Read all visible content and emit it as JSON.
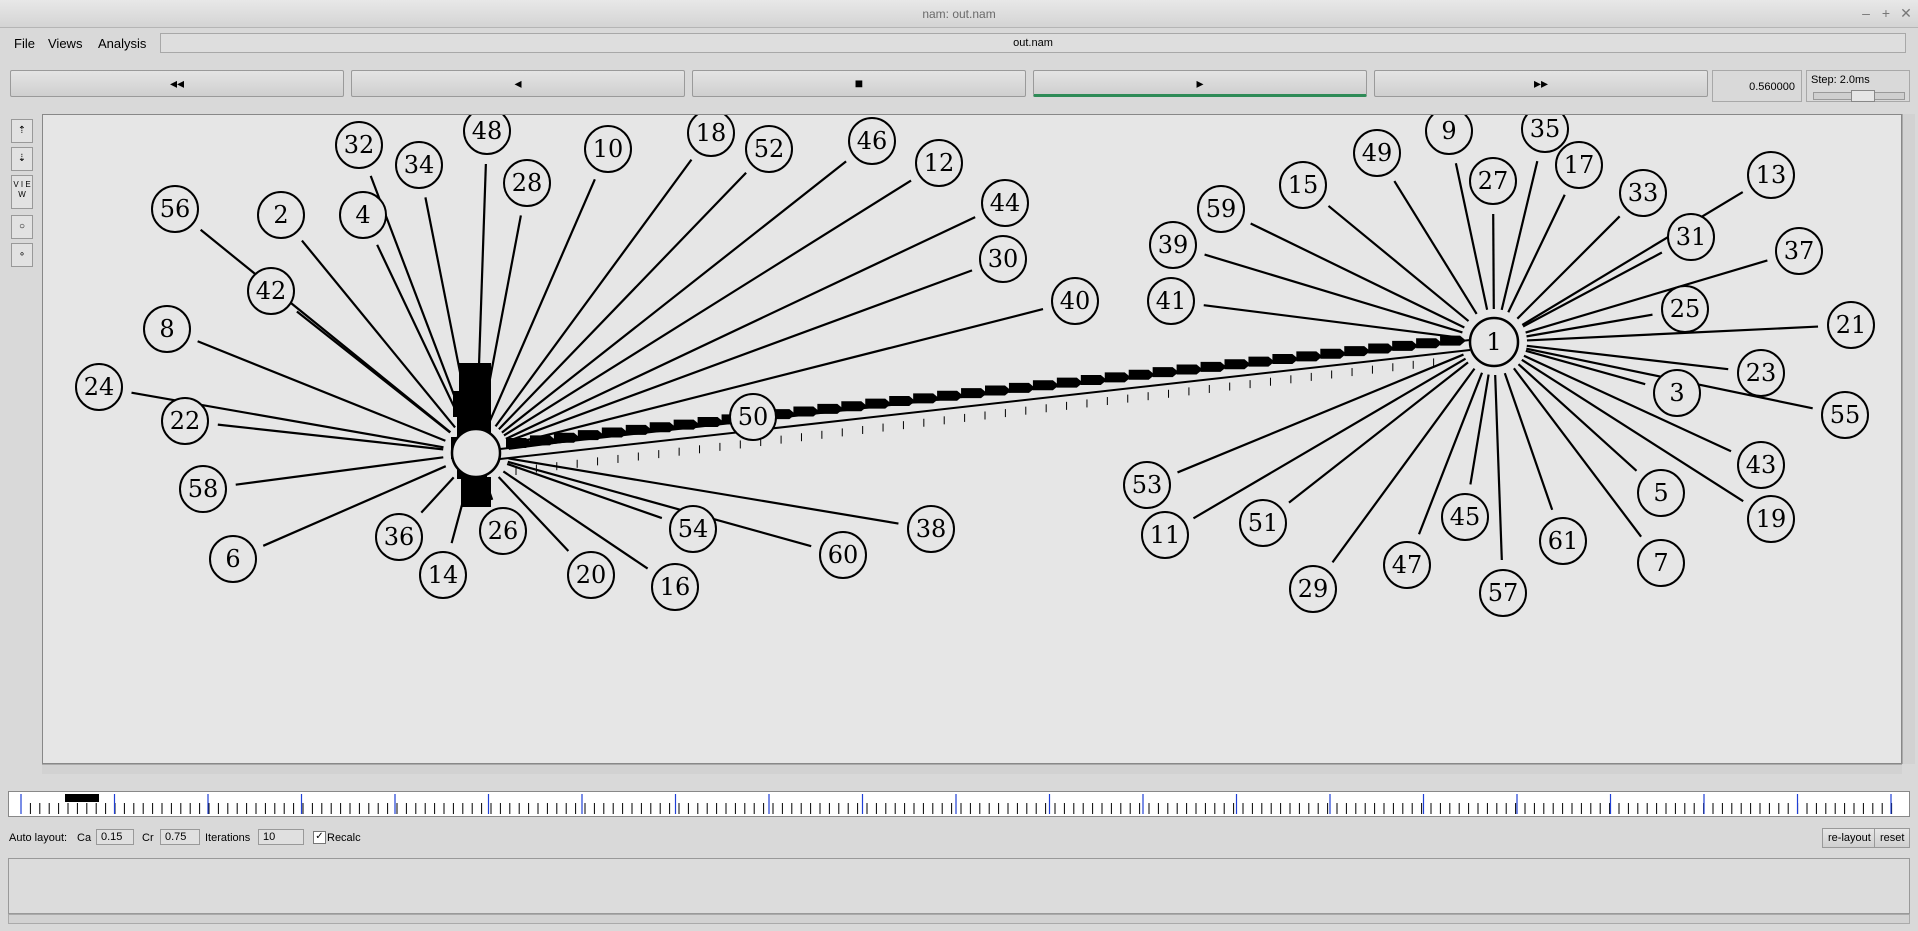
{
  "window": {
    "title": "nam: out.nam"
  },
  "menu": {
    "file": "File",
    "views": "Views",
    "analysis": "Analysis"
  },
  "file_name": "out.nam",
  "controls": {
    "rewind": "◂◂",
    "back": "◂",
    "stop": "■",
    "play": "▸",
    "forward": "▸▸",
    "time": "0.560000",
    "step": "Step: 2.0ms"
  },
  "tools": {
    "view_label": "V I E W"
  },
  "topology": {
    "hub_left": {
      "id": "0",
      "label": ""
    },
    "hub_right": {
      "id": "1",
      "label": "1"
    },
    "left_nodes": [
      {
        "label": "32"
      },
      {
        "label": "34"
      },
      {
        "label": "48"
      },
      {
        "label": "28"
      },
      {
        "label": "10"
      },
      {
        "label": "18"
      },
      {
        "label": "52"
      },
      {
        "label": "46"
      },
      {
        "label": "12"
      },
      {
        "label": "44"
      },
      {
        "label": "30"
      },
      {
        "label": "40"
      },
      {
        "label": "56"
      },
      {
        "label": "2"
      },
      {
        "label": "4"
      },
      {
        "label": "42"
      },
      {
        "label": "8"
      },
      {
        "label": "24"
      },
      {
        "label": "22"
      },
      {
        "label": "58"
      },
      {
        "label": "6"
      },
      {
        "label": "36"
      },
      {
        "label": "14"
      },
      {
        "label": "26"
      },
      {
        "label": "20"
      },
      {
        "label": "16"
      },
      {
        "label": "54"
      },
      {
        "label": "60"
      },
      {
        "label": "38"
      },
      {
        "label": "50"
      }
    ],
    "right_nodes": [
      {
        "label": "9"
      },
      {
        "label": "35"
      },
      {
        "label": "49"
      },
      {
        "label": "27"
      },
      {
        "label": "17"
      },
      {
        "label": "15"
      },
      {
        "label": "59"
      },
      {
        "label": "33"
      },
      {
        "label": "13"
      },
      {
        "label": "39"
      },
      {
        "label": "31"
      },
      {
        "label": "37"
      },
      {
        "label": "41"
      },
      {
        "label": "25"
      },
      {
        "label": "21"
      },
      {
        "label": "23"
      },
      {
        "label": "3"
      },
      {
        "label": "55"
      },
      {
        "label": "43"
      },
      {
        "label": "5"
      },
      {
        "label": "19"
      },
      {
        "label": "53"
      },
      {
        "label": "11"
      },
      {
        "label": "51"
      },
      {
        "label": "45"
      },
      {
        "label": "61"
      },
      {
        "label": "7"
      },
      {
        "label": "29"
      },
      {
        "label": "47"
      },
      {
        "label": "57"
      }
    ]
  },
  "auto_layout": {
    "label": "Auto layout:",
    "ca_label": "Ca",
    "ca_value": "0.15",
    "cr_label": "Cr",
    "cr_value": "0.75",
    "iterations_label": "Iterations",
    "iterations_value": "10",
    "recalc_label": "Recalc",
    "recalc_checked": true,
    "relayout_button": "re-layout",
    "reset_button": "reset"
  }
}
